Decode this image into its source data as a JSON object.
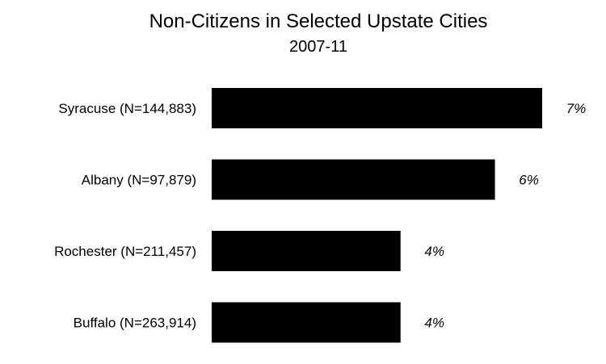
{
  "chart_data": {
    "type": "bar",
    "orientation": "horizontal",
    "title": "Non-Citizens  in Selected  Upstate Cities",
    "subtitle": "2007-11",
    "categories": [
      "Syracuse (N=144,883)",
      "Albany (N=97,879)",
      "Rochester (N=211,457)",
      "Buffalo (N=263,914)"
    ],
    "values": [
      7,
      6,
      4,
      4
    ],
    "value_labels": [
      "7%",
      "6%",
      "4%",
      "4%"
    ],
    "xlim": [
      0,
      7
    ],
    "grid": false,
    "bar_color": "#000000"
  }
}
